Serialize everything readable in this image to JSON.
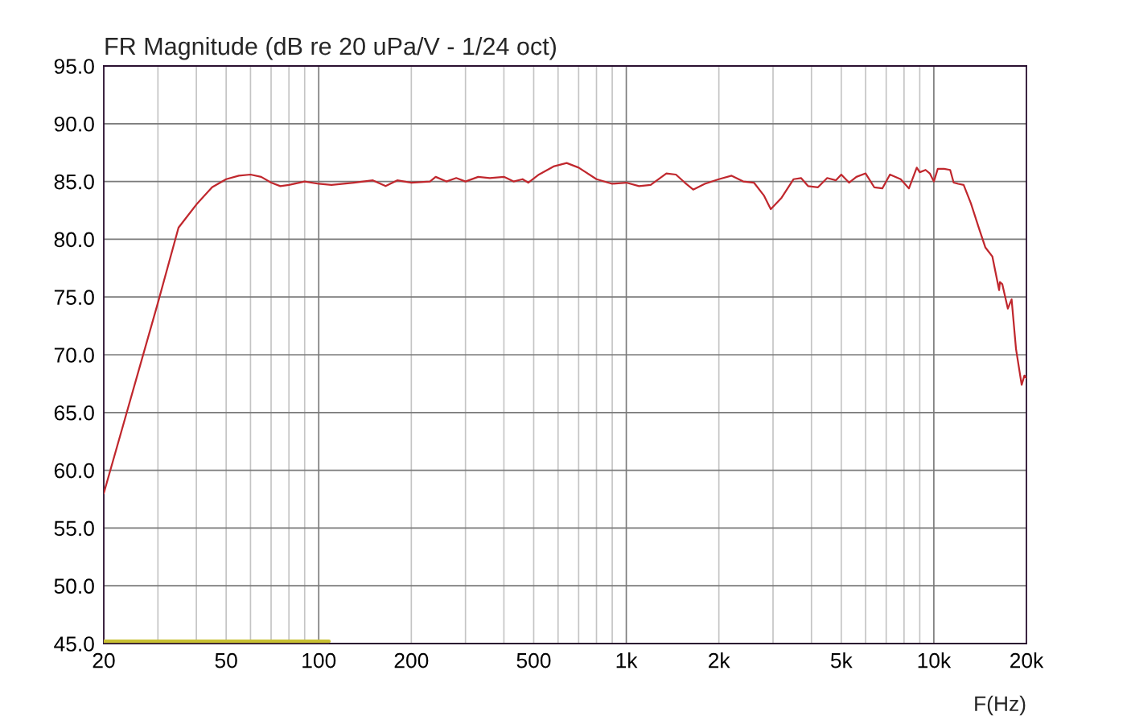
{
  "chart_data": {
    "type": "line",
    "title": "FR Magnitude (dB re 20 uPa/V - 1/24 oct)",
    "xlabel": "F(Hz)",
    "log": "x",
    "grid": true,
    "marker": "none",
    "line_style": "solid",
    "xlim": [
      20,
      20000
    ],
    "ylim": [
      45,
      95
    ],
    "xticks": [
      20,
      {
        "value": 30,
        "label": null
      },
      {
        "value": 40,
        "label": null
      },
      50,
      {
        "value": 60,
        "label": null
      },
      {
        "value": 70,
        "label": null
      },
      {
        "value": 80,
        "label": null
      },
      {
        "value": 90,
        "label": null
      },
      100,
      200,
      {
        "value": 300,
        "label": null
      },
      {
        "value": 400,
        "label": null
      },
      500,
      {
        "value": 600,
        "label": null
      },
      {
        "value": 700,
        "label": null
      },
      {
        "value": 800,
        "label": null
      },
      {
        "value": 900,
        "label": null
      },
      {
        "value": 1000,
        "label": "1k"
      },
      {
        "value": 2000,
        "label": "2k"
      },
      {
        "value": 3000,
        "label": null
      },
      {
        "value": 4000,
        "label": null
      },
      {
        "value": 5000,
        "label": "5k"
      },
      {
        "value": 6000,
        "label": null
      },
      {
        "value": 7000,
        "label": null
      },
      {
        "value": 8000,
        "label": null
      },
      {
        "value": 9000,
        "label": null
      },
      {
        "value": 10000,
        "label": "10k"
      },
      {
        "value": 20000,
        "label": "20k"
      }
    ],
    "yticks": [
      {
        "value": 45,
        "label": "45.0"
      },
      {
        "value": 50,
        "label": "50.0"
      },
      {
        "value": 55,
        "label": "55.0"
      },
      {
        "value": 60,
        "label": "60.0"
      },
      {
        "value": 65,
        "label": "65.0"
      },
      {
        "value": 70,
        "label": "70.0"
      },
      {
        "value": 75,
        "label": "75.0"
      },
      {
        "value": 80,
        "label": "80.0"
      },
      {
        "value": 85,
        "label": "85.0"
      },
      {
        "value": 90,
        "label": "90.0"
      },
      {
        "value": 95,
        "label": "95.0"
      }
    ],
    "series": [
      {
        "color": "#c0272d",
        "x": [
          20,
          30,
          35,
          40,
          45,
          50,
          55,
          60,
          65,
          70,
          75,
          80,
          90,
          100,
          110,
          130,
          150,
          165,
          180,
          200,
          230,
          240,
          260,
          280,
          300,
          330,
          360,
          400,
          430,
          460,
          480,
          520,
          580,
          640,
          700,
          800,
          900,
          1000,
          1100,
          1200,
          1350,
          1450,
          1550,
          1650,
          1800,
          2000,
          2200,
          2400,
          2600,
          2800,
          2950,
          3200,
          3500,
          3700,
          3900,
          4200,
          4500,
          4800,
          5000,
          5300,
          5600,
          6000,
          6400,
          6800,
          7200,
          7800,
          8300,
          8800,
          9000,
          9400,
          9700,
          10000,
          10300,
          10800,
          11300,
          11600,
          12000,
          12500,
          13200,
          14000,
          14700,
          15500,
          16300,
          16400,
          16700,
          17400,
          17900,
          18500,
          19300,
          19700,
          20000
        ],
        "values": [
          58.0,
          74.5,
          81.0,
          83.0,
          84.5,
          85.2,
          85.5,
          85.6,
          85.4,
          84.9,
          84.6,
          84.7,
          85.0,
          84.8,
          84.7,
          84.9,
          85.1,
          84.6,
          85.1,
          84.9,
          85.0,
          85.4,
          85.0,
          85.3,
          85.0,
          85.4,
          85.3,
          85.4,
          85.0,
          85.2,
          84.9,
          85.6,
          86.3,
          86.6,
          86.2,
          85.2,
          84.8,
          84.9,
          84.6,
          84.7,
          85.7,
          85.6,
          84.9,
          84.3,
          84.8,
          85.2,
          85.5,
          85.0,
          84.9,
          83.8,
          82.6,
          83.6,
          85.2,
          85.3,
          84.6,
          84.5,
          85.3,
          85.1,
          85.6,
          84.9,
          85.4,
          85.7,
          84.5,
          84.4,
          85.6,
          85.2,
          84.4,
          86.2,
          85.8,
          86.0,
          85.7,
          85.0,
          86.1,
          86.1,
          86.0,
          84.9,
          84.8,
          84.7,
          83.1,
          81.0,
          79.3,
          78.5,
          75.6,
          76.3,
          76.1,
          74.0,
          74.8,
          70.5,
          67.4,
          68.2,
          68.0
        ]
      },
      {
        "color": "#c8c032",
        "x": [
          20,
          108
        ],
        "values": [
          45.2,
          45.2
        ]
      }
    ]
  }
}
